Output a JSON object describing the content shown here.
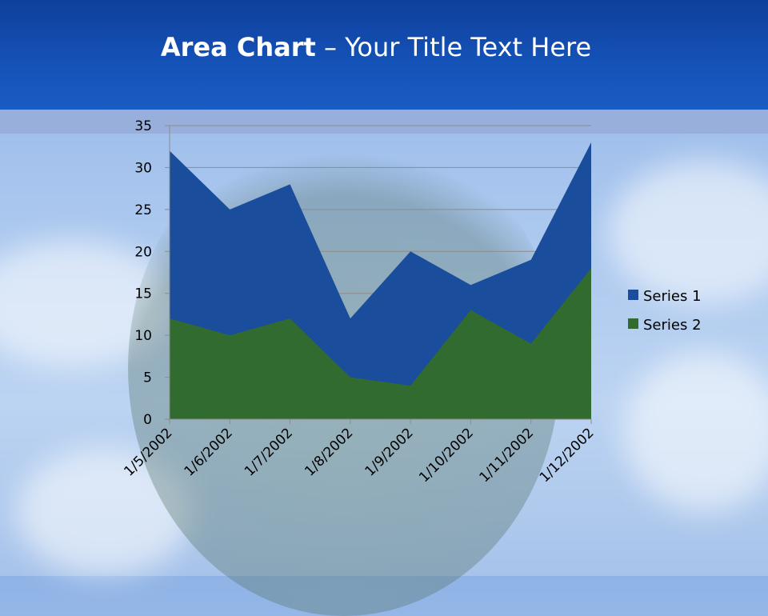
{
  "title": {
    "bold": "Area Chart",
    "rest": " – Your Title Text Here"
  },
  "chart_data": {
    "type": "area",
    "categories": [
      "1/5/2002",
      "1/6/2002",
      "1/7/2002",
      "1/8/2002",
      "1/9/2002",
      "1/10/2002",
      "1/11/2002",
      "1/12/2002"
    ],
    "series": [
      {
        "name": "Series 1",
        "values": [
          32,
          25,
          28,
          12,
          20,
          16,
          19,
          33
        ],
        "color": "#1a4d9c"
      },
      {
        "name": "Series 2",
        "values": [
          12,
          10,
          12,
          5,
          4,
          13,
          9,
          18
        ],
        "color": "#326b2f"
      }
    ],
    "ylim": [
      0,
      35
    ],
    "yticks": [
      "0",
      "5",
      "10",
      "15",
      "20",
      "25",
      "30",
      "35"
    ],
    "grid": true,
    "legend": "right"
  }
}
